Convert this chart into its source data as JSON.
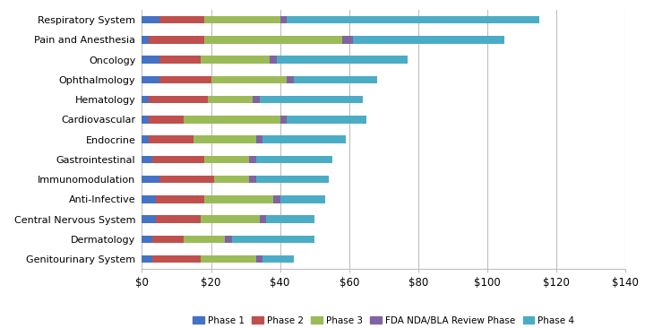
{
  "categories": [
    "Respiratory System",
    "Pain and Anesthesia",
    "Oncology",
    "Ophthalmology",
    "Hematology",
    "Cardiovascular",
    "Endocrine",
    "Gastrointestinal",
    "Immunomodulation",
    "Anti-Infective",
    "Central Nervous System",
    "Dermatology",
    "Genitourinary System"
  ],
  "phase1": [
    5,
    2,
    5,
    5,
    2,
    2,
    2,
    3,
    5,
    4,
    4,
    3,
    3
  ],
  "phase2": [
    13,
    16,
    12,
    15,
    17,
    10,
    13,
    15,
    16,
    14,
    13,
    9,
    14
  ],
  "phase3": [
    22,
    40,
    20,
    22,
    13,
    28,
    18,
    13,
    10,
    20,
    17,
    12,
    16
  ],
  "fda": [
    2,
    3,
    2,
    2,
    2,
    2,
    2,
    2,
    2,
    2,
    2,
    2,
    2
  ],
  "phase4": [
    73,
    44,
    38,
    24,
    30,
    23,
    24,
    22,
    21,
    13,
    14,
    24,
    9
  ],
  "phase1_color": "#4472C4",
  "phase2_color": "#C0504D",
  "phase3_color": "#9BBB59",
  "fda_color": "#8064A2",
  "phase4_color": "#4BACC6",
  "xlim": [
    0,
    140
  ],
  "xtick_labels": [
    "$0",
    "$20",
    "$40",
    "$60",
    "$80",
    "$100",
    "$120",
    "$140"
  ],
  "xtick_values": [
    0,
    20,
    40,
    60,
    80,
    100,
    120,
    140
  ],
  "legend_labels": [
    "Phase 1",
    "Phase 2",
    "Phase 3",
    "FDA NDA/BLA Review Phase",
    "Phase 4"
  ],
  "background_color": "#FFFFFF",
  "grid_color": "#BFBFBF"
}
